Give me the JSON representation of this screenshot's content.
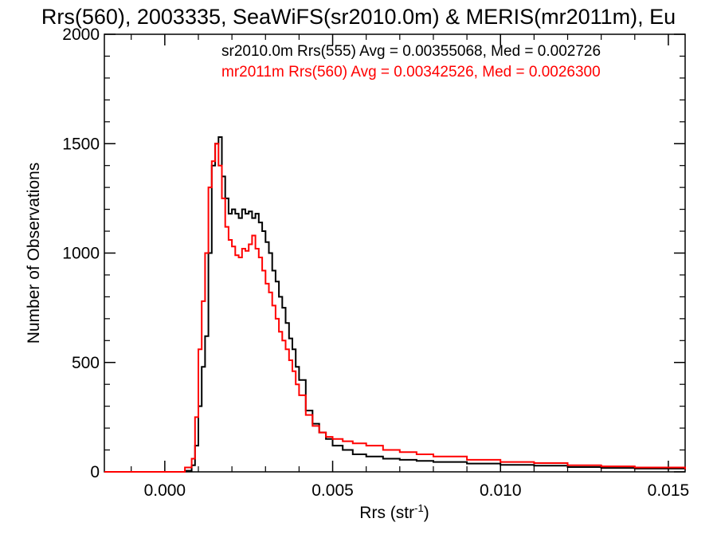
{
  "chart_data": {
    "type": "line",
    "title": "Rrs(560), 2003335, SeaWiFS(sr2010.0m) & MERIS(mr2011m), Eu",
    "xlabel": "Rrs (str",
    "xlabel_superscript": "-1",
    "xlabel_suffix": ")",
    "ylabel": "Number of Observations",
    "xlim": [
      -0.0018,
      0.0155
    ],
    "ylim": [
      0,
      2000
    ],
    "x_ticks": [
      0.0,
      0.005,
      0.01,
      0.015
    ],
    "x_tick_labels": [
      "0.000",
      "0.005",
      "0.010",
      "0.015"
    ],
    "y_ticks": [
      0,
      500,
      1000,
      1500,
      2000
    ],
    "y_tick_labels": [
      "0",
      "500",
      "1000",
      "1500",
      "2000"
    ],
    "grid": false,
    "legend_position": "top-right",
    "series": [
      {
        "name": "sr2010.0m Rrs(555) Avg = 0.00355068, Med = 0.002726",
        "color": "#000000",
        "x": [
          -0.0018,
          0.0004,
          0.0006,
          0.0008,
          0.0009,
          0.001,
          0.0011,
          0.0012,
          0.0013,
          0.0014,
          0.0015,
          0.0016,
          0.0017,
          0.0018,
          0.0019,
          0.002,
          0.0021,
          0.0022,
          0.0023,
          0.0024,
          0.0025,
          0.0026,
          0.0027,
          0.0028,
          0.0029,
          0.003,
          0.0031,
          0.0032,
          0.0033,
          0.0034,
          0.0035,
          0.0036,
          0.0037,
          0.0038,
          0.0039,
          0.004,
          0.0042,
          0.0044,
          0.0046,
          0.0048,
          0.005,
          0.0053,
          0.0056,
          0.006,
          0.0065,
          0.007,
          0.0075,
          0.008,
          0.009,
          0.01,
          0.011,
          0.012,
          0.013,
          0.014,
          0.0155
        ],
        "values": [
          0,
          0,
          5,
          30,
          120,
          300,
          480,
          620,
          1000,
          1400,
          1500,
          1530,
          1350,
          1250,
          1180,
          1200,
          1180,
          1160,
          1200,
          1180,
          1190,
          1160,
          1180,
          1140,
          1100,
          1050,
          1000,
          920,
          870,
          800,
          750,
          680,
          610,
          560,
          480,
          420,
          280,
          220,
          180,
          150,
          120,
          100,
          80,
          70,
          60,
          55,
          50,
          45,
          38,
          32,
          28,
          22,
          18,
          15,
          10
        ]
      },
      {
        "name": "mr2011m Rrs(560) Avg = 0.00342526, Med = 0.0026300",
        "color": "#ff0000",
        "x": [
          -0.0018,
          0.0004,
          0.0006,
          0.0008,
          0.0009,
          0.001,
          0.0011,
          0.0012,
          0.0013,
          0.0014,
          0.0015,
          0.0016,
          0.0017,
          0.0018,
          0.0019,
          0.002,
          0.0021,
          0.0022,
          0.0023,
          0.0024,
          0.0025,
          0.0026,
          0.0027,
          0.0028,
          0.0029,
          0.003,
          0.0031,
          0.0032,
          0.0033,
          0.0034,
          0.0035,
          0.0036,
          0.0037,
          0.0038,
          0.0039,
          0.004,
          0.0042,
          0.0044,
          0.0046,
          0.0048,
          0.005,
          0.0053,
          0.0056,
          0.006,
          0.0065,
          0.007,
          0.0075,
          0.008,
          0.009,
          0.01,
          0.011,
          0.012,
          0.013,
          0.014,
          0.0155
        ],
        "values": [
          0,
          0,
          20,
          60,
          250,
          560,
          780,
          1000,
          1300,
          1420,
          1500,
          1400,
          1250,
          1120,
          1060,
          1030,
          990,
          980,
          1020,
          1010,
          1040,
          1080,
          1020,
          980,
          920,
          860,
          820,
          760,
          700,
          640,
          600,
          560,
          510,
          460,
          400,
          350,
          260,
          210,
          180,
          160,
          150,
          140,
          130,
          120,
          100,
          90,
          80,
          70,
          55,
          45,
          40,
          30,
          25,
          20,
          12
        ]
      }
    ]
  }
}
